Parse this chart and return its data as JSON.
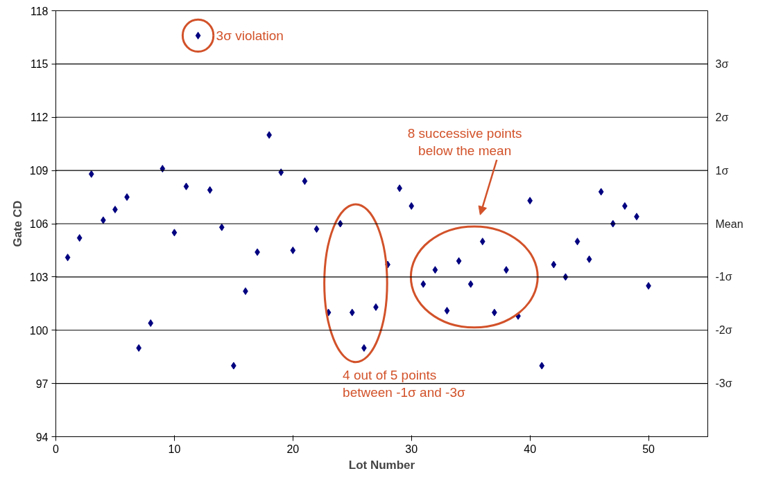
{
  "chart_data": {
    "type": "scatter",
    "xlabel": "Lot Number",
    "ylabel": "Gate CD",
    "x": [
      1,
      2,
      3,
      4,
      5,
      6,
      7,
      8,
      9,
      10,
      11,
      12,
      13,
      14,
      15,
      16,
      17,
      18,
      19,
      20,
      21,
      22,
      23,
      24,
      25,
      26,
      27,
      28,
      29,
      30,
      31,
      32,
      33,
      34,
      35,
      36,
      37,
      38,
      39,
      40,
      41,
      42,
      43,
      44,
      45,
      46,
      47,
      48,
      49,
      50
    ],
    "series": [
      {
        "color": "#000080",
        "values": [
          104.1,
          105.2,
          108.8,
          106.2,
          106.8,
          107.5,
          99.0,
          100.4,
          109.1,
          105.5,
          108.1,
          116.6,
          107.9,
          105.8,
          98.0,
          102.2,
          104.4,
          111.0,
          108.9,
          104.5,
          108.4,
          105.7,
          101.0,
          106.0,
          101.0,
          99.0,
          101.3,
          103.7,
          108.0,
          107.0,
          102.6,
          103.4,
          101.1,
          103.9,
          102.6,
          105.0,
          101.0,
          103.4,
          100.8,
          107.3,
          98.0,
          103.7,
          103.0,
          105.0,
          104.0,
          107.8,
          106.0,
          107.0,
          106.4,
          102.5
        ]
      }
    ],
    "marker": "diamond",
    "xlim": [
      0,
      55
    ],
    "xticks": [
      0,
      10,
      20,
      30,
      40,
      50
    ],
    "ylim": [
      94,
      118
    ],
    "yticks": [
      94,
      97,
      100,
      103,
      106,
      109,
      112,
      115,
      118
    ],
    "ref_lines": [
      {
        "axis": "y",
        "value": 97,
        "label": "-3σ",
        "color": "#000000"
      },
      {
        "axis": "y",
        "value": 100,
        "label": "-2σ",
        "color": "#000000"
      },
      {
        "axis": "y",
        "value": 103,
        "label": "-1σ",
        "color": "#000000"
      },
      {
        "axis": "y",
        "value": 106,
        "label": "Mean",
        "color": "#000000"
      },
      {
        "axis": "y",
        "value": 109,
        "label": "1σ",
        "color": "#000000"
      },
      {
        "axis": "y",
        "value": 112,
        "label": "2σ",
        "color": "#000000"
      },
      {
        "axis": "y",
        "value": 115,
        "label": "3σ",
        "color": "#000000"
      }
    ],
    "annotations": [
      {
        "text": "3σ violation",
        "x": 12,
        "y": 116.6
      },
      "8 successive points\nbelow the mean",
      "4 out of 5 points\nbetween -1σ and -3σ"
    ]
  }
}
